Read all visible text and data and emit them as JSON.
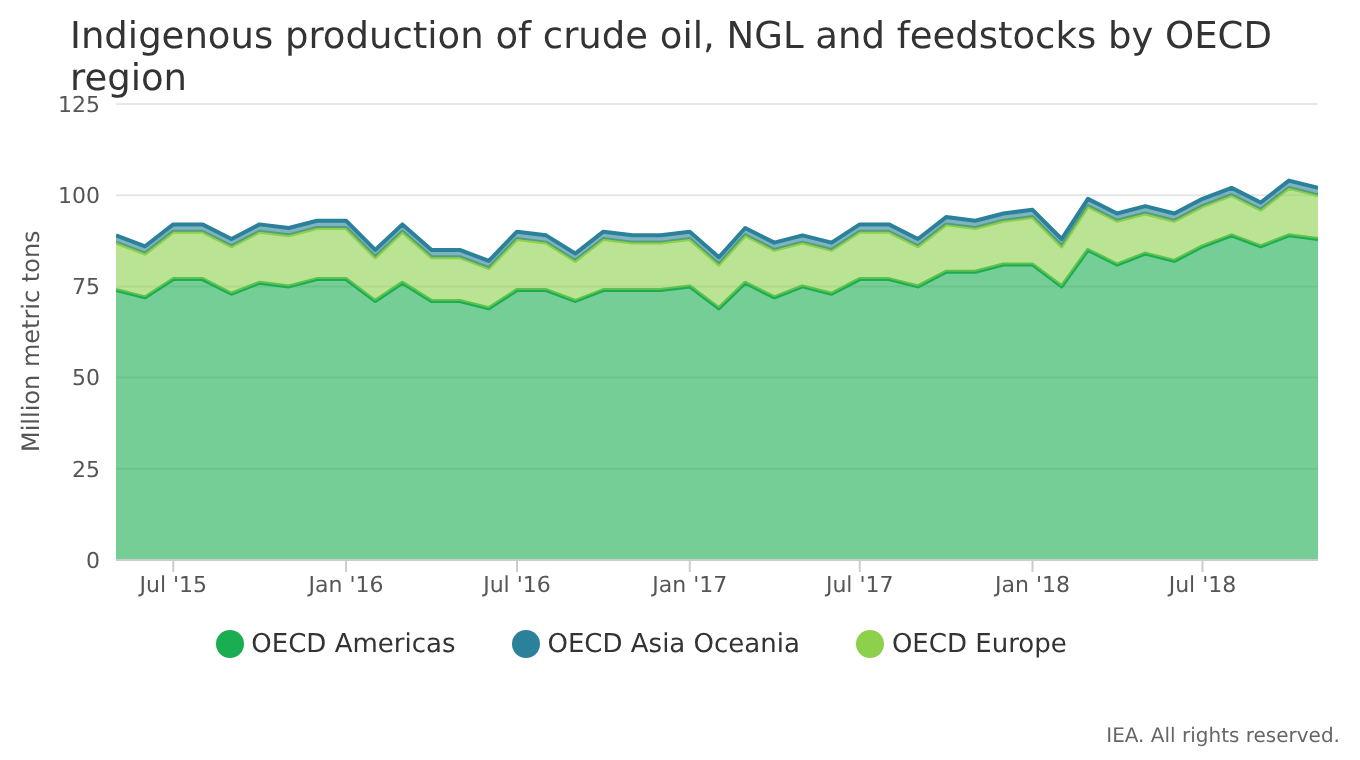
{
  "chart_data": {
    "type": "area",
    "stacked": true,
    "title": "Indigenous production of crude oil, NGL and feedstocks by OECD region",
    "ylabel": "Million metric tons",
    "annotations": [
      "IEA. All rights reserved."
    ],
    "x": [
      "2015-05",
      "2015-06",
      "2015-07",
      "2015-08",
      "2015-09",
      "2015-10",
      "2015-11",
      "2015-12",
      "2016-01",
      "2016-02",
      "2016-03",
      "2016-04",
      "2016-05",
      "2016-06",
      "2016-07",
      "2016-08",
      "2016-09",
      "2016-10",
      "2016-11",
      "2016-12",
      "2017-01",
      "2017-02",
      "2017-03",
      "2017-04",
      "2017-05",
      "2017-06",
      "2017-07",
      "2017-08",
      "2017-09",
      "2017-10",
      "2017-11",
      "2017-12",
      "2018-01",
      "2018-02",
      "2018-03",
      "2018-04",
      "2018-05",
      "2018-06",
      "2018-07",
      "2018-08",
      "2018-09",
      "2018-10",
      "2018-11"
    ],
    "xlim": [
      "2015-05",
      "2018-11"
    ],
    "xticks": [
      {
        "value": "2015-07",
        "label": "Jul '15"
      },
      {
        "value": "2016-01",
        "label": "Jan '16"
      },
      {
        "value": "2016-07",
        "label": "Jul '16"
      },
      {
        "value": "2017-01",
        "label": "Jan '17"
      },
      {
        "value": "2017-07",
        "label": "Jul '17"
      },
      {
        "value": "2018-01",
        "label": "Jan '18"
      },
      {
        "value": "2018-07",
        "label": "Jul '18"
      }
    ],
    "ylim": [
      0,
      125
    ],
    "yticks": [
      0,
      25,
      50,
      75,
      100,
      125
    ],
    "grid": "y",
    "legend": "bottom",
    "series": [
      {
        "name": "OECD Americas",
        "color": "#1aad52",
        "values": [
          74,
          72,
          77,
          77,
          73,
          76,
          75,
          77,
          77,
          71,
          76,
          71,
          71,
          69,
          74,
          74,
          71,
          74,
          74,
          74,
          75,
          69,
          76,
          72,
          75,
          73,
          77,
          77,
          75,
          79,
          79,
          81,
          81,
          75,
          85,
          81,
          84,
          82,
          86,
          89,
          86,
          89,
          88
        ]
      },
      {
        "name": "OECD Europe",
        "color": "#8dd04c",
        "values": [
          13,
          12,
          13,
          13,
          13,
          14,
          14,
          14,
          14,
          12,
          14,
          12,
          12,
          11,
          14,
          13,
          11,
          14,
          13,
          13,
          13,
          12,
          13,
          13,
          12,
          12,
          13,
          13,
          11,
          13,
          12,
          12,
          13,
          11,
          12,
          12,
          11,
          11,
          11,
          11,
          10,
          13,
          12
        ]
      },
      {
        "name": "OECD Asia Oceania",
        "color": "#2b819a",
        "values": [
          2,
          2,
          2,
          2,
          2,
          2,
          2,
          2,
          2,
          2,
          2,
          2,
          2,
          2,
          2,
          2,
          2,
          2,
          2,
          2,
          2,
          2,
          2,
          2,
          2,
          2,
          2,
          2,
          2,
          2,
          2,
          2,
          2,
          2,
          2,
          2,
          2,
          2,
          2,
          2,
          2,
          2,
          2
        ]
      }
    ]
  }
}
